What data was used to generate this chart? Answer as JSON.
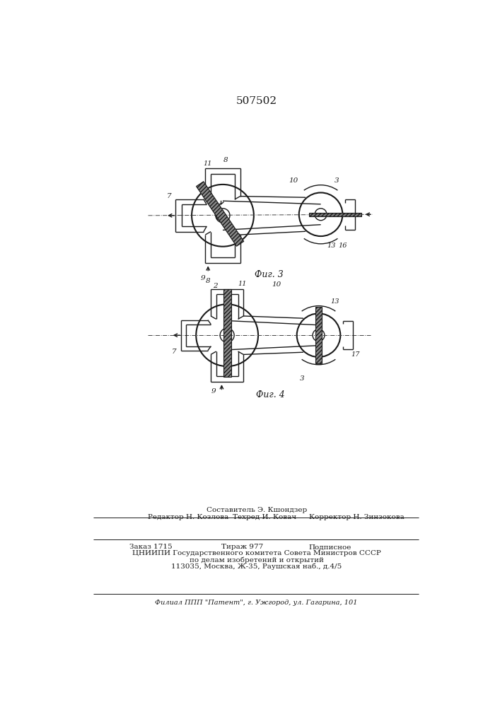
{
  "title": "507502",
  "fig3_caption": "Фиг. 3",
  "fig4_caption": "Фиг. 4",
  "lc": "#1a1a1a",
  "footer": [
    "Составитель Э. Кшондзер",
    "Редактор Н. Козлова",
    "Техред И. Ковач",
    "Корректор Н. Зинзокова",
    "Заказ 1715",
    "Тираж 977",
    "Подписное",
    "ЦНИИПИ Государственного комитета Совета Министров СССР",
    "по делам изобретений и открытий",
    "113035, Москва, Ж-35, Раушская наб., д.4/5",
    "Филиал ППП \"Патент\", г. Ужгород, ул. Гагарина, 101"
  ]
}
